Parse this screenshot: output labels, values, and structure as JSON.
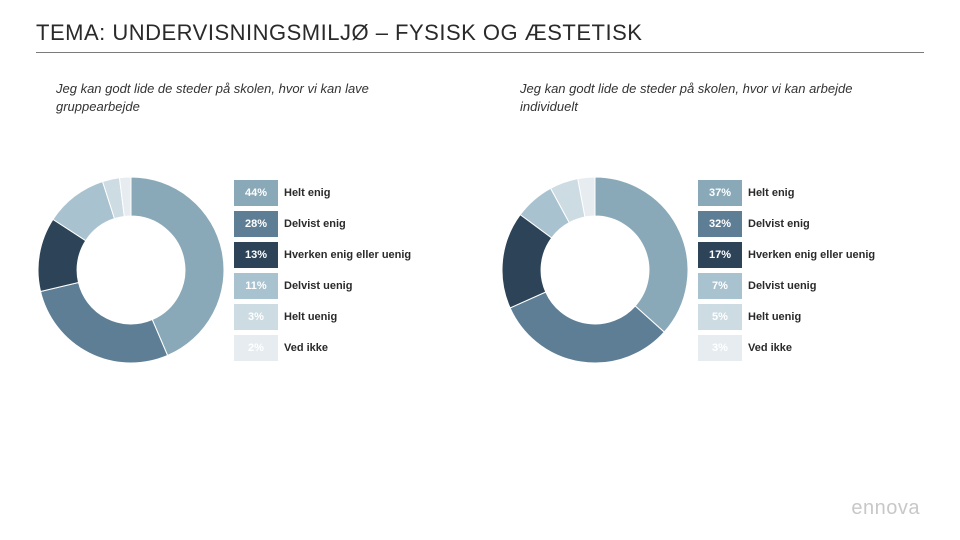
{
  "page": {
    "title": "TEMA: UNDERVISNINGSMILJØ – FYSISK OG ÆSTETISK",
    "title_fontsize": 22,
    "underline_color": "#7a7a7a",
    "background": "#ffffff",
    "brand": "ennova"
  },
  "charts": [
    {
      "subtitle": "Jeg kan godt lide de steder på skolen, hvor vi kan lave gruppearbejde",
      "type": "donut",
      "inner_radius_ratio": 0.58,
      "segments": [
        {
          "label": "Helt enig",
          "pct": 44,
          "color": "#8aa9b8"
        },
        {
          "label": "Delvist enig",
          "pct": 28,
          "color": "#5e7e95"
        },
        {
          "label": "Hverken enig eller uenig",
          "pct": 13,
          "color": "#2d4458"
        },
        {
          "label": "Delvist uenig",
          "pct": 11,
          "color": "#a9c2cf"
        },
        {
          "label": "Helt uenig",
          "pct": 3,
          "color": "#cddbe3"
        },
        {
          "label": "Ved ikke",
          "pct": 2,
          "color": "#e6ecef"
        }
      ],
      "pct_text_color": "#ffffff",
      "label_text_color": "#2a2a2a",
      "label_fontsize": 11,
      "label_fontweight": 600
    },
    {
      "subtitle": "Jeg kan godt lide de steder på skolen, hvor vi kan arbejde individuelt",
      "type": "donut",
      "inner_radius_ratio": 0.58,
      "segments": [
        {
          "label": "Helt enig",
          "pct": 37,
          "color": "#8aa9b8"
        },
        {
          "label": "Delvist enig",
          "pct": 32,
          "color": "#5e7e95"
        },
        {
          "label": "Hverken enig eller uenig",
          "pct": 17,
          "color": "#2d4458"
        },
        {
          "label": "Delvist uenig",
          "pct": 7,
          "color": "#a9c2cf"
        },
        {
          "label": "Helt uenig",
          "pct": 5,
          "color": "#cddbe3"
        },
        {
          "label": "Ved ikke",
          "pct": 3,
          "color": "#e6ecef"
        }
      ],
      "pct_text_color": "#ffffff",
      "label_text_color": "#2a2a2a",
      "label_fontsize": 11,
      "label_fontweight": 600
    }
  ]
}
